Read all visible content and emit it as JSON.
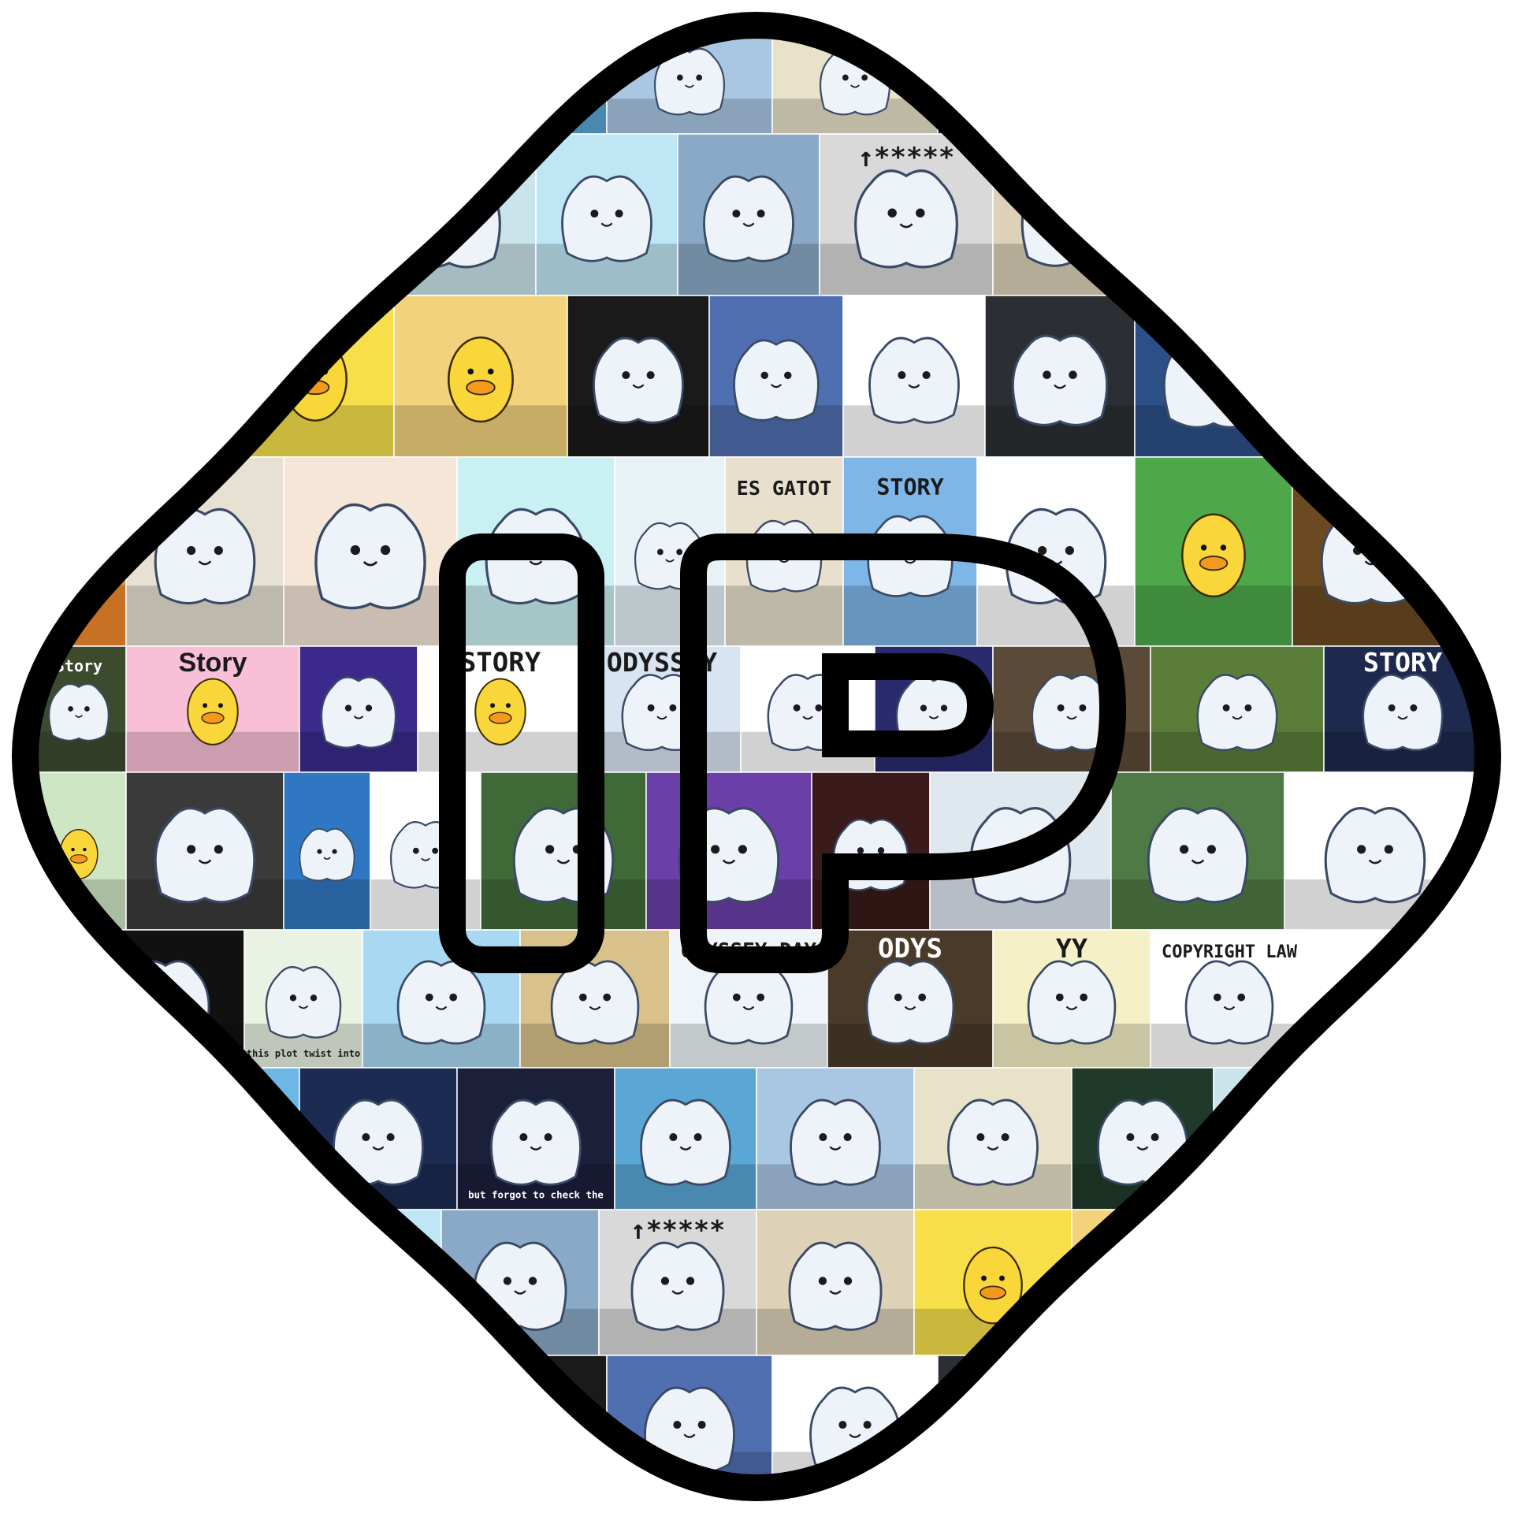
{
  "logo": {
    "monogram": "IP",
    "outline_color": "#000000",
    "letter_fill": "transparent"
  },
  "tiles": [
    {
      "kind": "beach",
      "bg": "#5aa7d6",
      "caption": ""
    },
    {
      "kind": "room",
      "bg": "#a9c7e3",
      "caption": ""
    },
    {
      "kind": "workshop",
      "bg": "#e8e2c8",
      "caption": ""
    },
    {
      "kind": "forest-campfire",
      "bg": "#1f3a2a",
      "caption": ""
    },
    {
      "kind": "sky-blob",
      "bg": "#c9e4ea",
      "caption": ""
    },
    {
      "kind": "painting",
      "bg": "#bfe6f5",
      "caption": ""
    },
    {
      "kind": "boats",
      "bg": "#8aa9c6",
      "caption": ""
    },
    {
      "kind": "trading-chart",
      "bg": "#d9d9d9",
      "caption": "↑*****"
    },
    {
      "kind": "studio",
      "bg": "#ddd2b8",
      "caption": ""
    },
    {
      "kind": "lotus",
      "bg": "#f6df4a",
      "caption": ""
    },
    {
      "kind": "angel-duck",
      "bg": "#f2d27a",
      "caption": ""
    },
    {
      "kind": "armor",
      "bg": "#1a1a1a",
      "caption": ""
    },
    {
      "kind": "christmas-room",
      "bg": "#4f6fb0",
      "caption": ""
    },
    {
      "kind": "angel-blob",
      "bg": "#ffffff",
      "caption": ""
    },
    {
      "kind": "spotlight",
      "bg": "#2b2f33",
      "caption": ""
    },
    {
      "kind": "night-moon",
      "bg": "#2c4f88",
      "caption": ""
    },
    {
      "kind": "beret",
      "bg": "#f28a2b",
      "caption": ""
    },
    {
      "kind": "music-notes",
      "bg": "#e6e1d3",
      "caption": ""
    },
    {
      "kind": "jar",
      "bg": "#f5e6d8",
      "caption": ""
    },
    {
      "kind": "rainbow",
      "bg": "#c9f0f2",
      "caption": ""
    },
    {
      "kind": "surprised-blob",
      "bg": "#e7f1f6",
      "caption": ""
    },
    {
      "kind": "cart",
      "bg": "#e8e0cd",
      "caption": "ES GATOT"
    },
    {
      "kind": "pixel-story",
      "bg": "#7fb6e8",
      "caption": "STORY"
    },
    {
      "kind": "guitar-blob",
      "bg": "#ffffff",
      "caption": ""
    },
    {
      "kind": "grass-duck",
      "bg": "#4ea84a",
      "caption": ""
    },
    {
      "kind": "temple",
      "bg": "#6b4a22",
      "caption": ""
    },
    {
      "kind": "doorway",
      "bg": "#3c4b2e",
      "caption": "Story"
    },
    {
      "kind": "story-duck",
      "bg": "#f8bfd6",
      "caption": "Story"
    },
    {
      "kind": "concert",
      "bg": "#3b2a8c",
      "caption": ""
    },
    {
      "kind": "story-duck-big",
      "bg": "#ffffff",
      "caption": "STORY"
    },
    {
      "kind": "coins",
      "bg": "#d9e4f3",
      "caption": "ODYSSEY"
    },
    {
      "kind": "computer",
      "bg": "#ffffff",
      "caption": ""
    },
    {
      "kind": "galaxy",
      "bg": "#2a2a6e",
      "caption": ""
    },
    {
      "kind": "detective",
      "bg": "#5b4a38",
      "caption": ""
    },
    {
      "kind": "forest-path",
      "bg": "#5b7d3a",
      "caption": ""
    },
    {
      "kind": "halloween",
      "bg": "#1d2a4d",
      "caption": "STORY"
    },
    {
      "kind": "chicks",
      "bg": "#cfe6c4",
      "caption": ""
    },
    {
      "kind": "monster",
      "bg": "#3a3a3a",
      "caption": ""
    },
    {
      "kind": "stars-blob",
      "bg": "#2f77c2",
      "caption": ""
    },
    {
      "kind": "tophat",
      "bg": "#ffffff",
      "caption": ""
    },
    {
      "kind": "orange-tree",
      "bg": "#3f6a38",
      "caption": ""
    },
    {
      "kind": "purple-room",
      "bg": "#6a3fa8",
      "caption": ""
    },
    {
      "kind": "lava",
      "bg": "#3a1a1a",
      "caption": ""
    },
    {
      "kind": "sleeping-blob",
      "bg": "#dfe7ef",
      "caption": ""
    },
    {
      "kind": "swamp",
      "bg": "#4f7a46",
      "caption": ""
    },
    {
      "kind": "guitarist",
      "bg": "#ffffff",
      "caption": ""
    },
    {
      "kind": "wolverine",
      "bg": "#111111",
      "caption": ""
    },
    {
      "kind": "comic",
      "bg": "#e9f2e3",
      "caption": "Let's turn this plot twist into a victory."
    },
    {
      "kind": "pineapple",
      "bg": "#a9d8f2",
      "caption": ""
    },
    {
      "kind": "bedroom",
      "bg": "#d8c18a",
      "caption": ""
    },
    {
      "kind": "odyssey-day",
      "bg": "#eef4f7",
      "caption": "ODYSSEY DAY"
    },
    {
      "kind": "treasure",
      "bg": "#4a3a2a",
      "caption": "ODYS"
    },
    {
      "kind": "santa",
      "bg": "#f5f0c6",
      "caption": "YY"
    },
    {
      "kind": "copyright",
      "bg": "#ffffff",
      "caption": "COPYRIGHT LAW"
    },
    {
      "kind": "boat-sea",
      "bg": "#6db7e6",
      "caption": ""
    },
    {
      "kind": "city-car",
      "bg": "#1b2b52",
      "caption": ""
    },
    {
      "kind": "night-house",
      "bg": "#1b1f3a",
      "caption": "but forgot to check the"
    }
  ]
}
